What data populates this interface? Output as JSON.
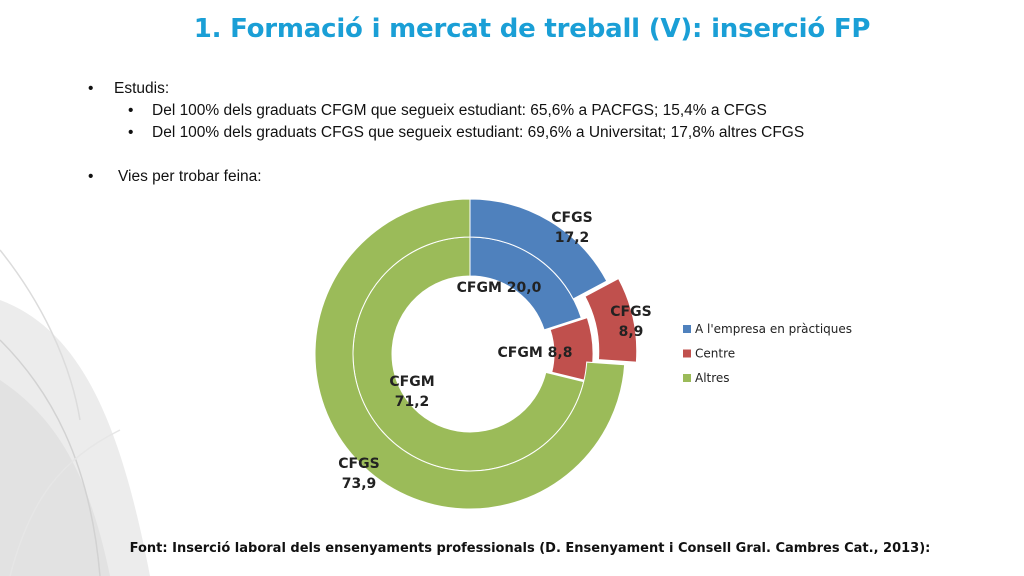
{
  "slide": {
    "title": "1. Formació i mercat de treball (V): inserció FP",
    "bullets": {
      "estudis": "Estudis:",
      "cfgm": "Del 100% dels graduats CFGM que segueix estudiant: 65,6% a PACFGS; 15,4% a CFGS",
      "cfgs": "Del 100% dels graduats CFGS que segueix estudiant: 69,6% a Universitat; 17,8% altres CFGS",
      "vies": "Vies per trobar feina:"
    },
    "source": "Font: Inserció laboral dels ensenyaments professionals (D. Ensenyament i Consell Gral. Cambres Cat., 2013):"
  },
  "chart_data": {
    "type": "doughnut",
    "categories": [
      "A l'empresa en pràctiques",
      "Centre",
      "Altres"
    ],
    "colors": [
      "#4f81bd",
      "#c0504d",
      "#9bbb59"
    ],
    "series": [
      {
        "name": "CFGM",
        "values": [
          20.0,
          8.8,
          71.2
        ],
        "ring": "inner"
      },
      {
        "name": "CFGS",
        "values": [
          17.2,
          8.9,
          73.9
        ],
        "ring": "outer"
      }
    ],
    "data_labels": {
      "cfgs_empresa": "CFGS\n17,2",
      "cfgs_centre": "CFGS\n8,9",
      "cfgs_altres": "CFGS\n73,9",
      "cfgm_empresa": "CFGM 20,0",
      "cfgm_centre": "CFGM 8,8",
      "cfgm_altres": "CFGM\n71,2"
    },
    "legend": {
      "position": "right",
      "entries": [
        "A l'empresa en pràctiques",
        "Centre",
        "Altres"
      ]
    }
  }
}
